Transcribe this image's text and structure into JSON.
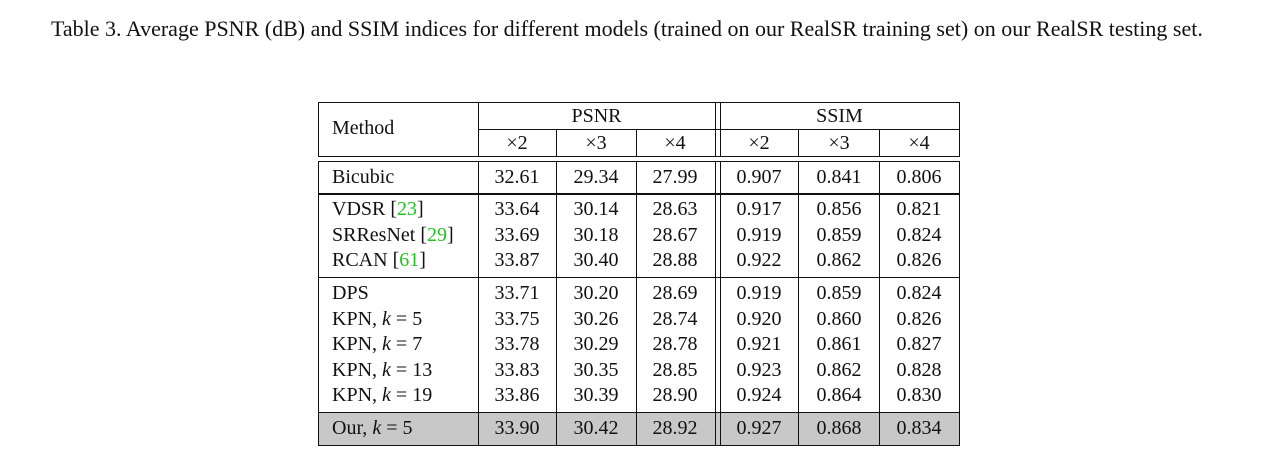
{
  "caption": "Table 3. Average PSNR (dB) and SSIM indices for different models (trained on our RealSR training set) on our RealSR testing set.",
  "table": {
    "method_header": "Method",
    "group_headers": [
      "PSNR",
      "SSIM"
    ],
    "scale_headers": [
      "×2",
      "×3",
      "×4",
      "×2",
      "×3",
      "×4"
    ],
    "groups": [
      {
        "rows": [
          {
            "method": "Bicubic",
            "values": [
              "32.61",
              "29.34",
              "27.99",
              "0.907",
              "0.841",
              "0.806"
            ]
          }
        ]
      },
      {
        "rows": [
          {
            "method": "VDSR",
            "ref": "23",
            "values": [
              "33.64",
              "30.14",
              "28.63",
              "0.917",
              "0.856",
              "0.821"
            ]
          },
          {
            "method": "SRResNet",
            "ref": "29",
            "values": [
              "33.69",
              "30.18",
              "28.67",
              "0.919",
              "0.859",
              "0.824"
            ]
          },
          {
            "method": "RCAN",
            "ref": "61",
            "values": [
              "33.87",
              "30.40",
              "28.88",
              "0.922",
              "0.862",
              "0.826"
            ]
          }
        ]
      },
      {
        "rows": [
          {
            "method": "DPS",
            "values": [
              "33.71",
              "30.20",
              "28.69",
              "0.919",
              "0.859",
              "0.824"
            ]
          },
          {
            "method": "KPN, ",
            "k": "5",
            "values": [
              "33.75",
              "30.26",
              "28.74",
              "0.920",
              "0.860",
              "0.826"
            ]
          },
          {
            "method": "KPN, ",
            "k": "7",
            "values": [
              "33.78",
              "30.29",
              "28.78",
              "0.921",
              "0.861",
              "0.827"
            ]
          },
          {
            "method": "KPN, ",
            "k": "13",
            "values": [
              "33.83",
              "30.35",
              "28.85",
              "0.923",
              "0.862",
              "0.828"
            ]
          },
          {
            "method": "KPN, ",
            "k": "19",
            "values": [
              "33.86",
              "30.39",
              "28.90",
              "0.924",
              "0.864",
              "0.830"
            ]
          }
        ]
      },
      {
        "highlight": true,
        "rows": [
          {
            "method": "Our, ",
            "k": "5",
            "values": [
              "33.90",
              "30.42",
              "28.92",
              "0.927",
              "0.868",
              "0.834"
            ]
          }
        ]
      }
    ],
    "k_symbol": "k",
    "k_equals": " = "
  },
  "colors": {
    "reference_link": "#22c122",
    "highlight_row": "#c8c8c8"
  }
}
